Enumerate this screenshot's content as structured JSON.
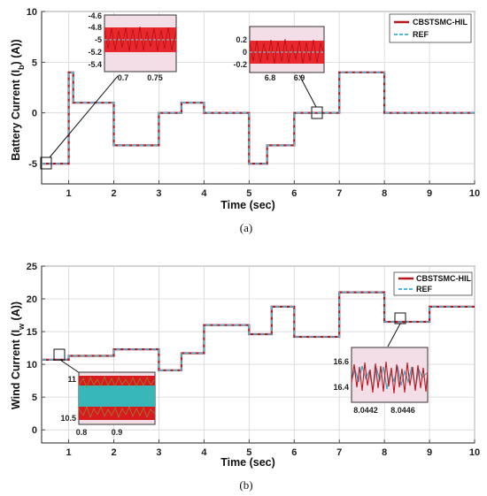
{
  "chart_data": [
    {
      "type": "line",
      "caption": "(a)",
      "xlabel": "Time (sec)",
      "ylabel_main": "Battery Current (I",
      "ylabel_sub": "b",
      "ylabel_end": ") (A))",
      "xlim": [
        0.4,
        10
      ],
      "ylim": [
        -7,
        10
      ],
      "xticks": [
        1,
        2,
        3,
        4,
        5,
        6,
        7,
        8,
        9,
        10
      ],
      "yticks": [
        -5,
        0,
        5,
        10
      ],
      "legend_position": "top-right",
      "legend": [
        "CBSTSMC-HIL",
        "REF"
      ],
      "series": [
        {
          "name": "CBSTSMC-HIL",
          "color": "#b5171c",
          "x": [
            0.4,
            1.0,
            1.0,
            1.1,
            1.1,
            2.0,
            2.0,
            3.0,
            3.0,
            3.5,
            3.5,
            4.0,
            4.0,
            5.0,
            5.0,
            5.4,
            5.4,
            6.0,
            6.0,
            7.0,
            7.0,
            8.0,
            8.0,
            10.0
          ],
          "y": [
            -5,
            -5,
            4,
            4,
            1,
            1,
            -3.2,
            -3.2,
            0,
            0,
            1,
            1,
            0,
            0,
            -5,
            -5,
            -3.2,
            -3.2,
            0,
            0,
            4,
            4,
            0,
            0
          ]
        },
        {
          "name": "REF",
          "color": "#4fb7d8",
          "x": [
            0.4,
            1.0,
            1.0,
            1.1,
            1.1,
            2.0,
            2.0,
            3.0,
            3.0,
            3.5,
            3.5,
            4.0,
            4.0,
            5.0,
            5.0,
            5.4,
            5.4,
            6.0,
            6.0,
            7.0,
            7.0,
            8.0,
            8.0,
            10.0
          ],
          "y": [
            -5,
            -5,
            4,
            4,
            1,
            1,
            -3.2,
            -3.2,
            0,
            0,
            1,
            1,
            0,
            0,
            -5,
            -5,
            -3.2,
            -3.2,
            0,
            0,
            4,
            4,
            0,
            0
          ]
        }
      ],
      "insets": [
        {
          "xticks": [
            "0.7",
            "0.75"
          ],
          "yticks": [
            "-4.6",
            "-4.8",
            "-5",
            "-5.2",
            "-5.4"
          ],
          "marker": {
            "x": 0.62,
            "y": -5
          }
        },
        {
          "xticks": [
            "6.8",
            "6.9"
          ],
          "yticks": [
            "0.2",
            "0",
            "-0.2"
          ],
          "marker": {
            "x": 6.55,
            "y": 0
          }
        }
      ]
    },
    {
      "type": "line",
      "caption": "(b)",
      "xlabel": "Time (sec)",
      "ylabel_main": "Wind Current (I",
      "ylabel_sub": "w",
      "ylabel_end": " (A))",
      "xlim": [
        0.4,
        10
      ],
      "ylim": [
        -2,
        25
      ],
      "xticks": [
        1,
        2,
        3,
        4,
        5,
        6,
        7,
        8,
        9,
        10
      ],
      "yticks": [
        0,
        5,
        10,
        15,
        20,
        25
      ],
      "legend_position": "top-right",
      "legend": [
        "CBSTSMC-HIL",
        "REF"
      ],
      "series": [
        {
          "name": "CBSTSMC-HIL",
          "color": "#b5171c",
          "x": [
            0.4,
            1.0,
            1.0,
            2.0,
            2.0,
            3.0,
            3.0,
            3.5,
            3.5,
            4.0,
            4.0,
            5.0,
            5.0,
            5.5,
            5.5,
            6.0,
            6.0,
            7.0,
            7.0,
            8.0,
            8.0,
            9.0,
            9.0,
            10.0
          ],
          "y": [
            10.7,
            10.7,
            11.3,
            11.3,
            12.3,
            12.3,
            9.1,
            9.1,
            11.7,
            11.7,
            16.0,
            16.0,
            14.6,
            14.6,
            18.8,
            18.8,
            14.2,
            14.2,
            21.0,
            21.0,
            16.5,
            16.5,
            18.8,
            18.8
          ]
        },
        {
          "name": "REF",
          "color": "#4fb7d8",
          "x": [
            0.4,
            1.0,
            1.0,
            2.0,
            2.0,
            3.0,
            3.0,
            3.5,
            3.5,
            4.0,
            4.0,
            5.0,
            5.0,
            5.5,
            5.5,
            6.0,
            6.0,
            7.0,
            7.0,
            8.0,
            8.0,
            9.0,
            9.0,
            10.0
          ],
          "y": [
            10.7,
            10.7,
            11.3,
            11.3,
            12.3,
            12.3,
            9.1,
            9.1,
            11.7,
            11.7,
            16.0,
            16.0,
            14.6,
            14.6,
            18.8,
            18.8,
            14.2,
            14.2,
            21.0,
            21.0,
            16.5,
            16.5,
            18.8,
            18.8
          ]
        }
      ],
      "insets": [
        {
          "xticks": [
            "0.8",
            "0.9"
          ],
          "yticks": [
            "11",
            "10.5"
          ],
          "marker": {
            "x": 0.9,
            "y": 11
          }
        },
        {
          "xticks": [
            "8.0442",
            "8.0446"
          ],
          "yticks": [
            "16.6",
            "16.4"
          ],
          "marker": {
            "x": 8.35,
            "y": 16.6
          }
        }
      ]
    }
  ]
}
